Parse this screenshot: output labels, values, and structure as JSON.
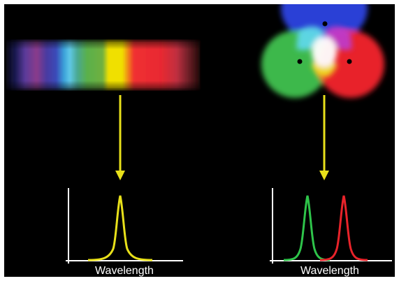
{
  "left": {
    "axis_label": "Wavelength",
    "peak_color": "#E8E01A"
  },
  "right": {
    "axis_label": "Wavelength",
    "peak_colors": [
      "#2EC44A",
      "#E8232A"
    ]
  },
  "colors": {
    "background": "#000000",
    "arrow": "#E8E01A",
    "axis": "#FFFFFF",
    "red": "#E8232A",
    "green": "#3DB84B",
    "blue": "#2A3FD6"
  }
}
